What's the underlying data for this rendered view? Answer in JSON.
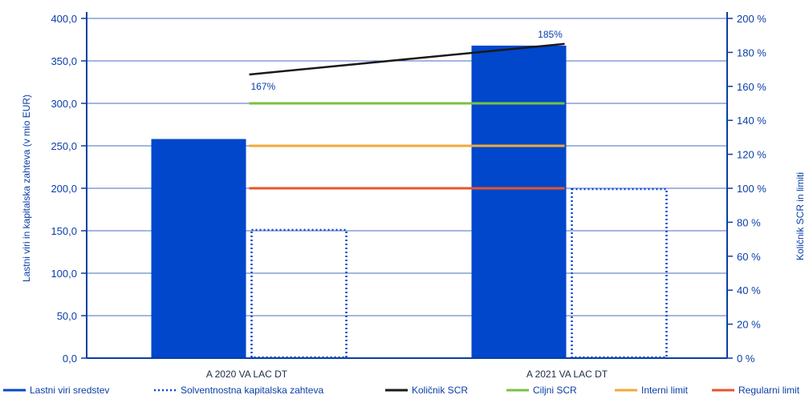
{
  "colors": {
    "axis": "#0a3ea8",
    "grid": "#0a3ea8",
    "bar": "#0047cc",
    "solvency": "#0047cc",
    "ratio": "#1a1a1a",
    "target": "#7ac143",
    "internal": "#f2a93b",
    "regulatory": "#e8542a"
  },
  "chart_data": {
    "type": "bar",
    "categories": [
      "A 2020 VA LAC DT",
      "A 2021 VA LAC DT"
    ],
    "left_axis": {
      "label": "Lastni viri in kapitalska zahteva (v mio EUR)",
      "range": [
        0,
        400
      ],
      "ticks": [
        "0,0",
        "50,0",
        "100,0",
        "150,0",
        "200,0",
        "250,0",
        "300,0",
        "350,0",
        "400,0"
      ]
    },
    "right_axis": {
      "label": "Količnik SCR in limiti",
      "range": [
        0,
        200
      ],
      "ticks": [
        "0 %",
        "20 %",
        "40 %",
        "60 %",
        "80 %",
        "100 %",
        "120 %",
        "140 %",
        "160 %",
        "180 %",
        "200 %"
      ]
    },
    "grid": true,
    "legend_position": "bottom",
    "series": [
      {
        "name": "Lastni viri sredstev",
        "kind": "bar",
        "axis": "left",
        "values": [
          258,
          368
        ]
      },
      {
        "name": "Solventnostna kapitalska zahteva",
        "kind": "bar-dotted",
        "axis": "left",
        "values": [
          151,
          199
        ]
      },
      {
        "name": "Količnik SCR",
        "kind": "line",
        "axis": "right",
        "values": [
          167,
          185
        ],
        "data_labels": [
          "167%",
          "185%"
        ]
      },
      {
        "name": "Ciljni SCR",
        "kind": "line",
        "axis": "right",
        "values": [
          150,
          150
        ]
      },
      {
        "name": "Interni limit",
        "kind": "line",
        "axis": "right",
        "values": [
          125,
          125
        ]
      },
      {
        "name": "Regularni limit",
        "kind": "line",
        "axis": "right",
        "values": [
          100,
          100
        ]
      }
    ]
  }
}
